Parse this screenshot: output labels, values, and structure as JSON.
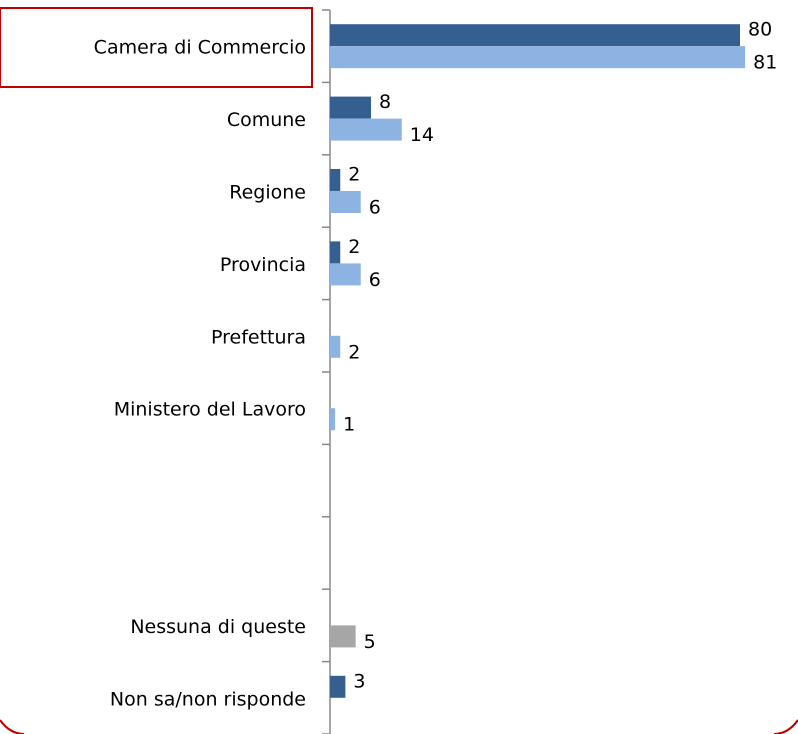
{
  "chart_data": {
    "type": "bar",
    "orientation": "horizontal",
    "categories": [
      "Camera di Commercio",
      "Comune",
      "Regione",
      "Provincia",
      "Prefettura",
      "Ministero del Lavoro",
      null,
      null,
      "Nessuna di queste",
      "Non sa/non risponde"
    ],
    "series": [
      {
        "color": "#355f91",
        "values": [
          80,
          8,
          2,
          2,
          null,
          null,
          null,
          null,
          null,
          3
        ]
      },
      {
        "color": "#8db3e2",
        "values": [
          81,
          14,
          6,
          6,
          2,
          1,
          null,
          null,
          null,
          null
        ]
      },
      {
        "color": "#a6a6a6",
        "values": [
          null,
          null,
          null,
          null,
          null,
          null,
          null,
          null,
          5,
          null
        ]
      }
    ]
  }
}
